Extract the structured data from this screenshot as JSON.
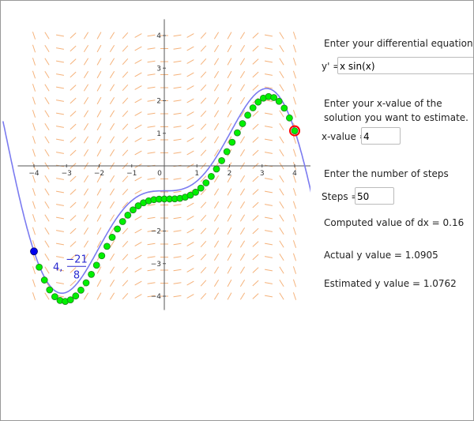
{
  "graph": {
    "xlim": [
      -4.45,
      4.45
    ],
    "ylim": [
      -4.4,
      4.5
    ],
    "xticks": [
      {
        "value": -4,
        "label": "−4"
      },
      {
        "value": -3,
        "label": "−3"
      },
      {
        "value": -2,
        "label": "−2"
      },
      {
        "value": -1,
        "label": "−1"
      },
      0,
      1,
      2,
      3,
      4
    ],
    "yticks": [
      4,
      3,
      2,
      1,
      {
        "value": -2,
        "label": "−2"
      },
      {
        "value": -3,
        "label": "−3"
      },
      {
        "value": -4,
        "label": "−4"
      }
    ],
    "start": {
      "x": -4,
      "y": -2.625,
      "label_x": "4,",
      "label_num": "−21",
      "label_den": "8"
    }
  },
  "form": {
    "eq_prompt": "Enter your differential equation",
    "eq_label": "y' =",
    "eq_value": "x sin(x)",
    "x_prompt": "Enter your x-value of the solution you want to estimate.",
    "x_label": "x-value =",
    "x_value": 4,
    "steps_prompt": "Enter the number of steps",
    "steps_label": "Steps =",
    "steps_value": 50,
    "dx_text": "Computed value of dx = 0.16",
    "actual_text": "Actual y value = 1.0905",
    "estimated_text": "Estimated y value = 1.0762"
  }
}
